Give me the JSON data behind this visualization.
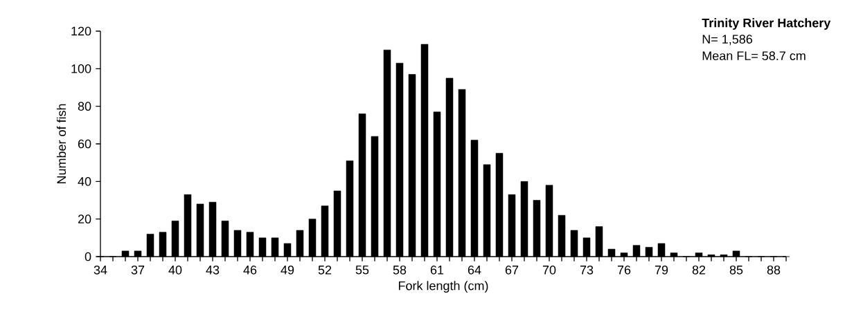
{
  "chart_data": {
    "type": "bar",
    "title": "Trinity River Hatchery",
    "annotations": [
      "N= 1,586",
      "Mean FL= 58.7 cm"
    ],
    "xlabel": "Fork length (cm)",
    "ylabel": "Number of fish",
    "categories": [
      "34",
      null,
      null,
      "37",
      null,
      null,
      "40",
      null,
      null,
      "43",
      null,
      null,
      "46",
      null,
      null,
      "49",
      null,
      null,
      "52",
      null,
      null,
      "55",
      null,
      null,
      "58",
      null,
      null,
      "61",
      null,
      null,
      "64",
      null,
      null,
      "67",
      null,
      null,
      "70",
      null,
      null,
      "73",
      null,
      null,
      "76",
      null,
      null,
      "79",
      null,
      null,
      "82",
      null,
      null,
      "85",
      null,
      null,
      "88",
      null
    ],
    "values": [
      0,
      0,
      3,
      3,
      12,
      13,
      19,
      33,
      28,
      29,
      19,
      14,
      13,
      10,
      10,
      7,
      14,
      20,
      27,
      35,
      51,
      76,
      64,
      110,
      103,
      97,
      113,
      77,
      95,
      89,
      62,
      49,
      55,
      33,
      40,
      30,
      38,
      22,
      14,
      10,
      16,
      4,
      2,
      6,
      5,
      7,
      2,
      0,
      2,
      1,
      1,
      3,
      0,
      0,
      0,
      0
    ],
    "color": "#000000",
    "ylim": [
      0,
      120
    ],
    "yticks": [
      0,
      20,
      40,
      60,
      80,
      100,
      120
    ]
  }
}
